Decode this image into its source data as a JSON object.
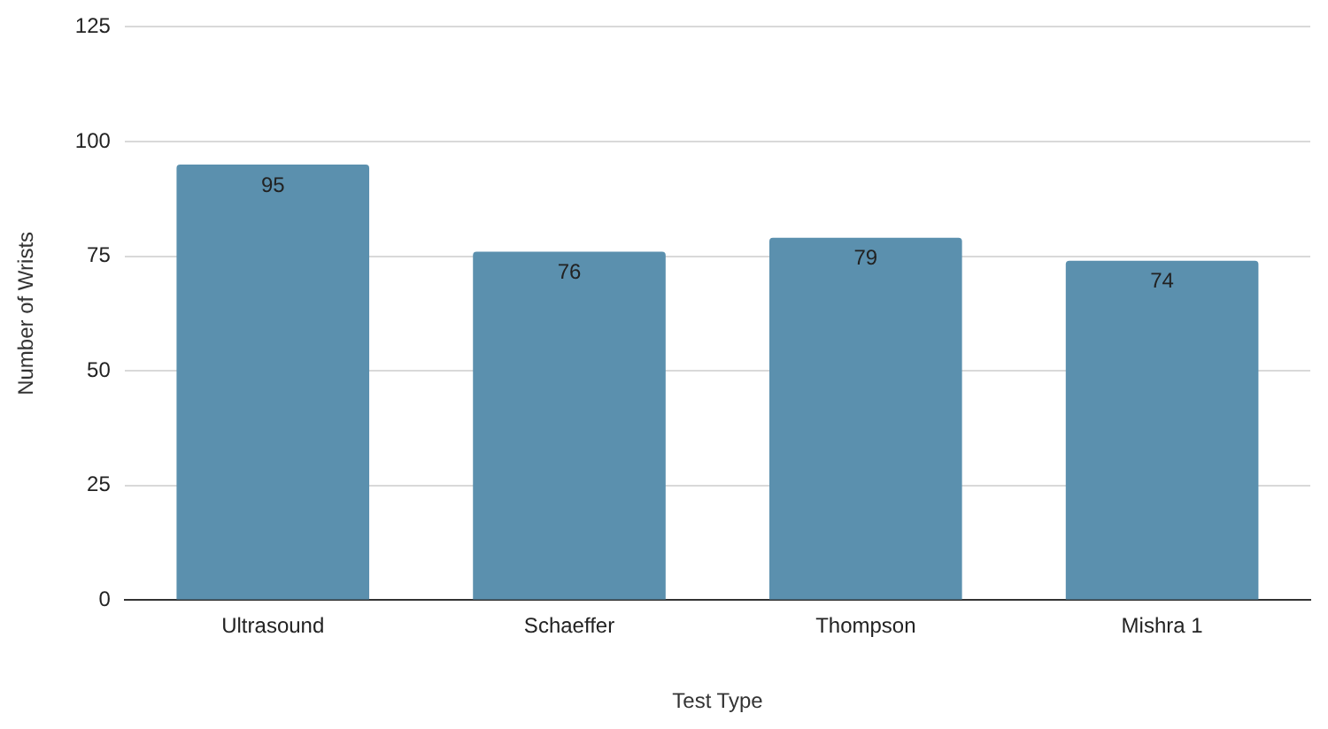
{
  "chart_data": {
    "type": "bar",
    "xlabel": "Test Type",
    "ylabel": "Number of Wrists",
    "categories": [
      "Ultrasound",
      "Schaeffer",
      "Thompson",
      "Mishra 1"
    ],
    "values": [
      95,
      76,
      79,
      74
    ],
    "color": "#5b90ae",
    "ylim": [
      0,
      125
    ],
    "yticks": [
      0,
      25,
      50,
      75,
      100,
      125
    ],
    "grid": "y",
    "data_labels": true
  }
}
